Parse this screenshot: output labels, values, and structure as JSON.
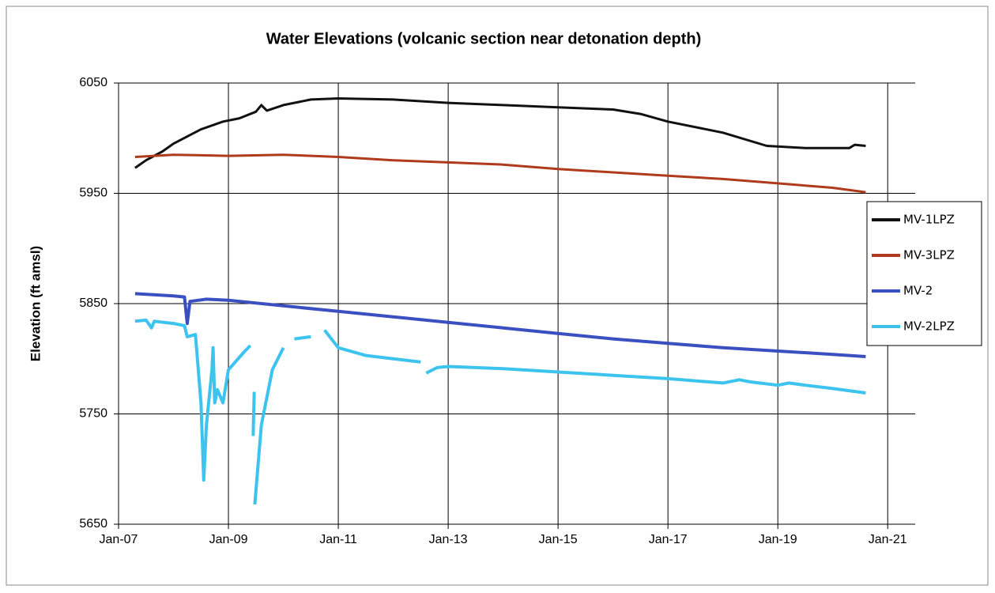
{
  "chart_data": {
    "type": "line",
    "title": "Water Elevations (volcanic section near detonation depth)",
    "y_label": "Elevation (ft amsl)",
    "xlim": [
      2007,
      2021.5
    ],
    "xticks": [
      {
        "value": 2007,
        "label": "Jan-07"
      },
      {
        "value": 2009,
        "label": "Jan-09"
      },
      {
        "value": 2011,
        "label": "Jan-11"
      },
      {
        "value": 2013,
        "label": "Jan-13"
      },
      {
        "value": 2015,
        "label": "Jan-15"
      },
      {
        "value": 2017,
        "label": "Jan-17"
      },
      {
        "value": 2019,
        "label": "Jan-19"
      },
      {
        "value": 2021,
        "label": "Jan-21"
      }
    ],
    "ylim": [
      5650,
      6050
    ],
    "yticks": [
      5650,
      5750,
      5850,
      5950,
      6050
    ],
    "grid": true,
    "legend": "right",
    "series": [
      {
        "name": "MV-1LPZ",
        "color": "#111111",
        "x": [
          2007.3,
          2007.5,
          2007.8,
          2008,
          2008.5,
          2008.9,
          2009.2,
          2009.5,
          2009.6,
          2009.7,
          2010,
          2010.5,
          2011,
          2012,
          2013,
          2014,
          2015,
          2016,
          2016.5,
          2017,
          2018,
          2018.8,
          2019.5,
          2020.3,
          2020.4,
          2020.6
        ],
        "values": [
          5973,
          5980,
          5988,
          5995,
          6008,
          6015,
          6018,
          6024,
          6030,
          6025,
          6030,
          6035,
          6036,
          6035,
          6032,
          6030,
          6028,
          6026,
          6022,
          6015,
          6005,
          5993,
          5991,
          5991,
          5994,
          5993
        ]
      },
      {
        "name": "MV-3LPZ",
        "color": "#b03a1c",
        "x": [
          2007.3,
          2008,
          2009,
          2010,
          2011,
          2012,
          2013,
          2014,
          2015,
          2016,
          2017,
          2018,
          2019,
          2020,
          2020.6
        ],
        "values": [
          5983,
          5985,
          5984,
          5985,
          5983,
          5980,
          5978,
          5976,
          5972,
          5969,
          5966,
          5963,
          5959,
          5955,
          5951
        ]
      },
      {
        "name": "MV-2",
        "color": "#3a4fc0",
        "x": [
          2007.3,
          2008,
          2008.2,
          2008.25,
          2008.3,
          2008.6,
          2009,
          2010,
          2011,
          2012,
          2013,
          2014,
          2015,
          2016,
          2017,
          2018,
          2019,
          2020,
          2020.6
        ],
        "values": [
          5859,
          5857,
          5856,
          5832,
          5852,
          5854,
          5853,
          5848,
          5843,
          5838,
          5833,
          5828,
          5823,
          5818,
          5814,
          5810,
          5807,
          5804,
          5802
        ]
      },
      {
        "name": "MV-2LPZ",
        "color": "#3cc3ee",
        "x": [
          2007.3,
          2007.5,
          2007.6,
          2007.65,
          2008,
          2008.2,
          2008.25,
          2008.4,
          2008.5,
          2008.55,
          2008.6,
          2008.7,
          2008.72,
          2008.75,
          2008.8,
          2008.9,
          2009,
          2009.3,
          2009.4,
          null,
          2009.45,
          2009.47,
          null,
          2009.48,
          2009.6,
          2009.8,
          2010,
          null,
          2010.2,
          2010.5,
          null,
          2010.75,
          2011,
          2011.5,
          2012.5,
          null,
          2012.6,
          2012.8,
          2013,
          2014,
          2015,
          2016,
          2017,
          2018,
          2018.3,
          2018.5,
          2019,
          2019.2,
          2019.5,
          2020,
          2020.6
        ],
        "values": [
          5834,
          5835,
          5828,
          5834,
          5832,
          5830,
          5820,
          5822,
          5760,
          5690,
          5740,
          5790,
          5810,
          5760,
          5772,
          5760,
          5790,
          5807,
          5812,
          null,
          5730,
          5770,
          null,
          5668,
          5740,
          5790,
          5810,
          null,
          5818,
          5820,
          null,
          5826,
          5810,
          5803,
          5797,
          null,
          5787,
          5792,
          5793,
          5791,
          5788,
          5785,
          5782,
          5778,
          5781,
          5779,
          5776,
          5778,
          5776,
          5773,
          5769
        ]
      }
    ]
  }
}
